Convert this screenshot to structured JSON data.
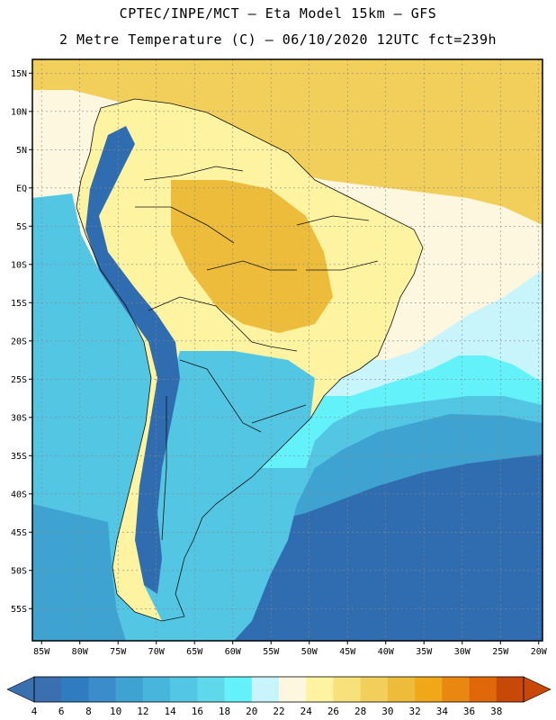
{
  "title_line1": "CPTEC/INPE/MCT –  Eta Model 15km – GFS",
  "title_line2": "2 Metre Temperature (C) – 06/10/2020 12UTC fct=239h",
  "lat_ticks": [
    {
      "value": 15,
      "label": "15N"
    },
    {
      "value": 10,
      "label": "10N"
    },
    {
      "value": 5,
      "label": "5N"
    },
    {
      "value": 0,
      "label": "EQ"
    },
    {
      "value": -5,
      "label": "5S"
    },
    {
      "value": -10,
      "label": "10S"
    },
    {
      "value": -15,
      "label": "15S"
    },
    {
      "value": -20,
      "label": "20S"
    },
    {
      "value": -25,
      "label": "25S"
    },
    {
      "value": -30,
      "label": "30S"
    },
    {
      "value": -35,
      "label": "35S"
    },
    {
      "value": -40,
      "label": "40S"
    },
    {
      "value": -45,
      "label": "45S"
    },
    {
      "value": -50,
      "label": "50S"
    },
    {
      "value": -55,
      "label": "55S"
    }
  ],
  "lon_ticks": [
    {
      "value": -85,
      "label": "85W"
    },
    {
      "value": -80,
      "label": "80W"
    },
    {
      "value": -75,
      "label": "75W"
    },
    {
      "value": -70,
      "label": "70W"
    },
    {
      "value": -65,
      "label": "65W"
    },
    {
      "value": -60,
      "label": "60W"
    },
    {
      "value": -55,
      "label": "55W"
    },
    {
      "value": -50,
      "label": "50W"
    },
    {
      "value": -45,
      "label": "45W"
    },
    {
      "value": -40,
      "label": "40W"
    },
    {
      "value": -35,
      "label": "35W"
    },
    {
      "value": -30,
      "label": "30W"
    },
    {
      "value": -25,
      "label": "25W"
    },
    {
      "value": -20,
      "label": "20W"
    }
  ],
  "colorbar": {
    "labels": [
      "4",
      "6",
      "8",
      "10",
      "12",
      "14",
      "16",
      "18",
      "20",
      "22",
      "24",
      "26",
      "28",
      "30",
      "32",
      "34",
      "36",
      "38"
    ],
    "colors": [
      "#3a6fb0",
      "#2f7dc0",
      "#3a8cca",
      "#3fa3d2",
      "#48b6dc",
      "#52c6e2",
      "#5fd8ec",
      "#64f2fa",
      "#c8f4fc",
      "#fdf7e0",
      "#fdf3a0",
      "#f8e07a",
      "#f2cf5a",
      "#ecbc3a",
      "#f0a818",
      "#e88810",
      "#e06808",
      "#c84808"
    ],
    "low_arrow_color": "#3a6fb0",
    "high_arrow_color": "#c84808"
  },
  "colors": {
    "ocean_deep": "#2f6cb0",
    "ocean_mid": "#3fa3d2",
    "ocean_warm": "#52c6e2",
    "ocean_cyan": "#64f2fa",
    "ocean_pale": "#c8f4fc",
    "ocean_cream": "#fdf7e0",
    "tropic_yellow": "#f8e07a",
    "tropic_orange": "#f2cf5a",
    "land_pale": "#fdf3a0",
    "land_hot": "#ecbc3a",
    "andes_cold": "#2f6cb0"
  }
}
